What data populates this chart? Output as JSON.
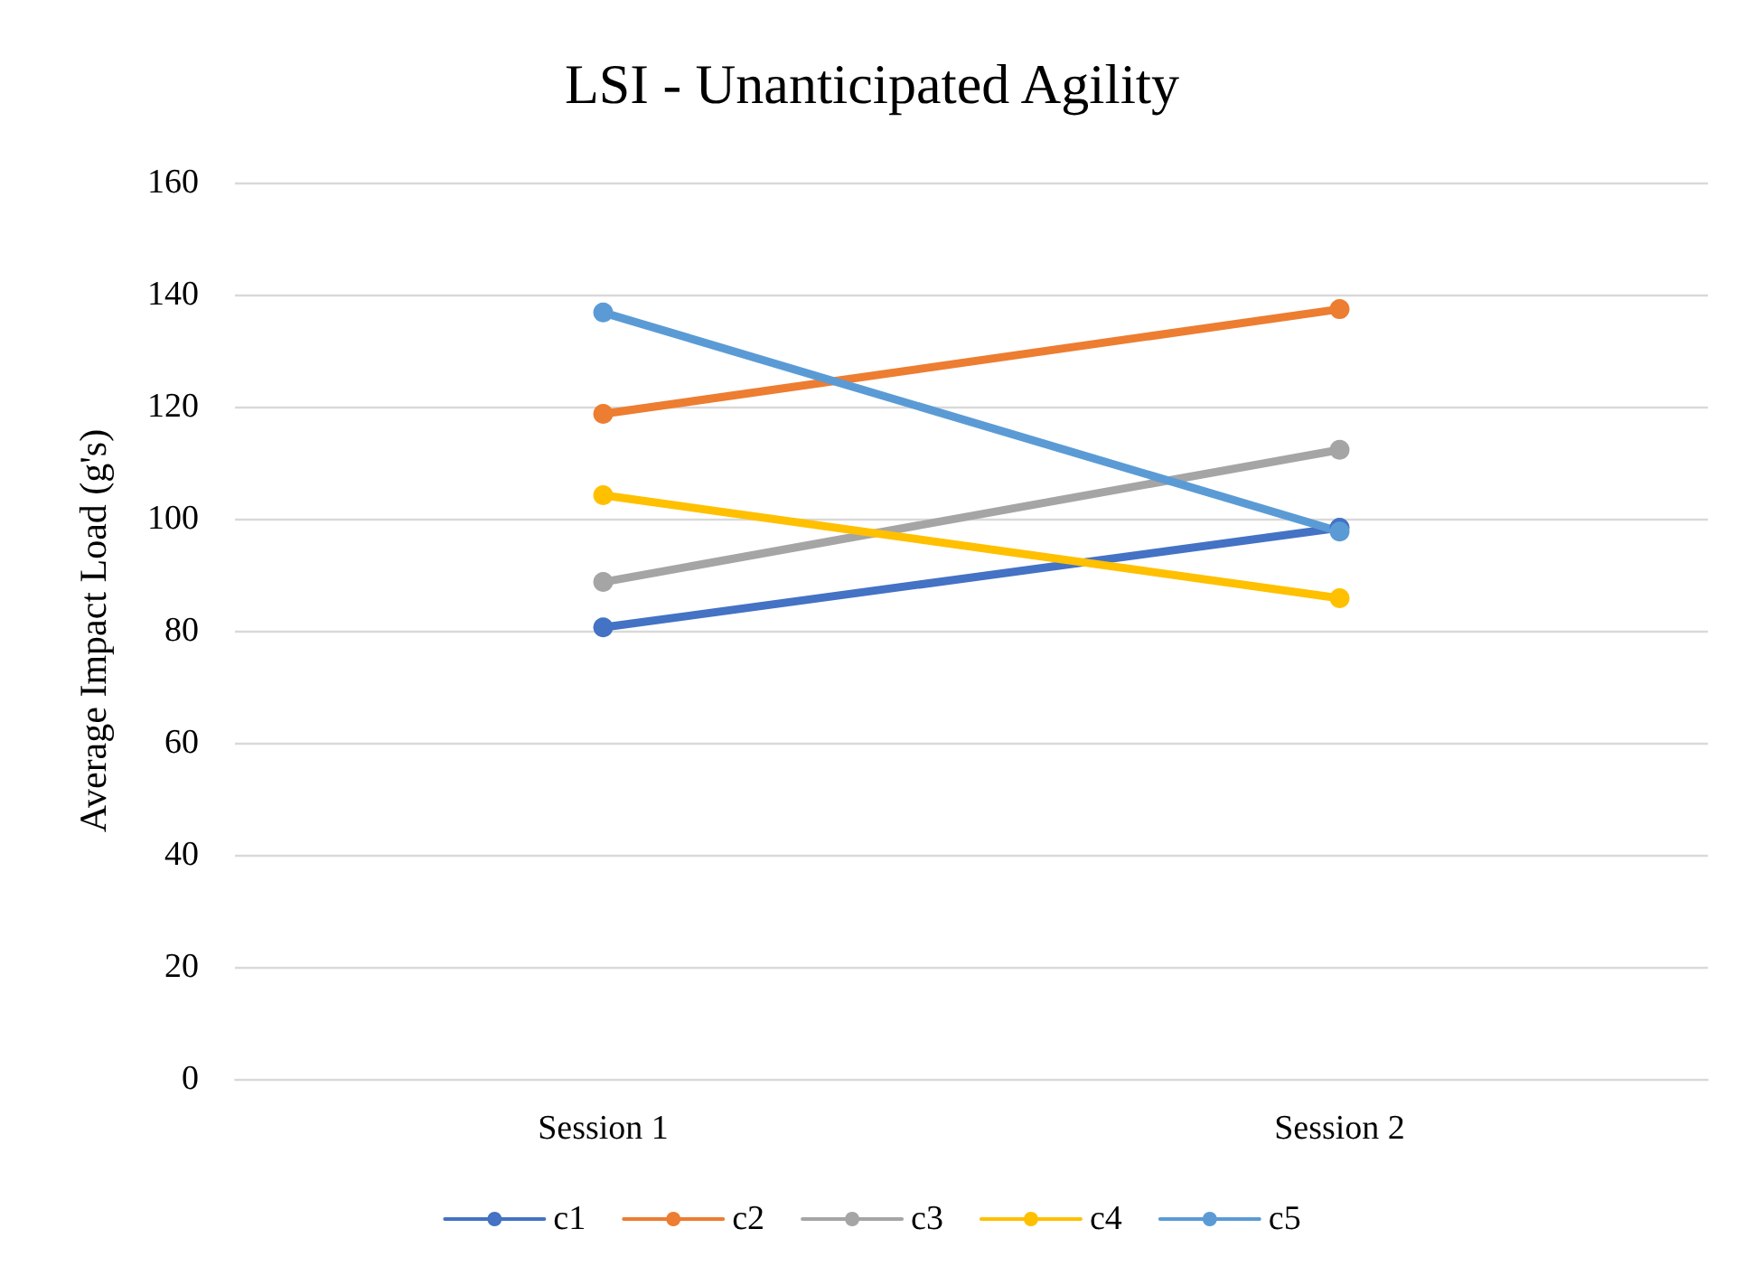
{
  "chart_data": {
    "type": "line",
    "title": "LSI - Unanticipated Agility",
    "ylabel": "Average Impact Load (g's)",
    "categories": [
      "Session 1",
      "Session 2"
    ],
    "series": [
      {
        "name": "c1",
        "color": "#4472c4",
        "values": [
          80.6,
          98.4
        ]
      },
      {
        "name": "c2",
        "color": "#ed7d31",
        "values": [
          118.7,
          137.4
        ]
      },
      {
        "name": "c3",
        "color": "#a5a5a5",
        "values": [
          88.7,
          112.3
        ]
      },
      {
        "name": "c4",
        "color": "#ffc000",
        "values": [
          104.2,
          85.8
        ]
      },
      {
        "name": "c5",
        "color": "#5b9bd5",
        "values": [
          136.8,
          97.7
        ]
      }
    ],
    "ylim": [
      0,
      160
    ],
    "yticks": [
      0,
      20,
      40,
      60,
      80,
      100,
      120,
      140,
      160
    ],
    "grid": "y",
    "legend": "bottom",
    "marker": "circle",
    "line_style": "solid"
  }
}
